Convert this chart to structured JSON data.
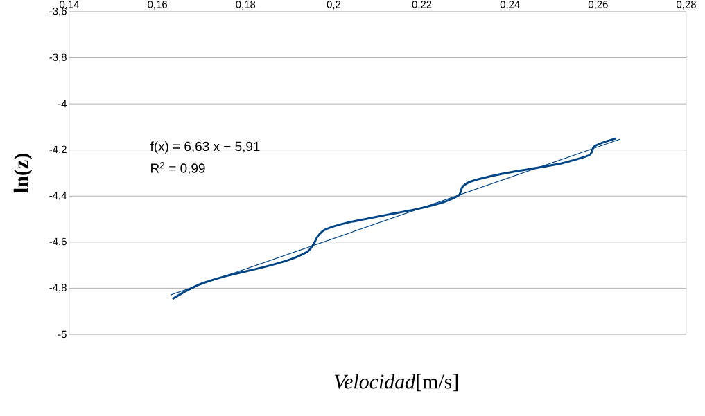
{
  "chart_data": {
    "type": "line",
    "xlabel": "*Velocidad*[m/s]",
    "ylabel": "**ln(z)**",
    "series": [
      {
        "color": "#004586",
        "x": [
          0.1634,
          0.166,
          0.17,
          0.176,
          0.184,
          0.19,
          0.194,
          0.1955,
          0.1963,
          0.198,
          0.203,
          0.2125,
          0.219,
          0.225,
          0.2284,
          0.2292,
          0.2312,
          0.2375,
          0.2446,
          0.2517,
          0.258,
          0.259,
          0.261,
          0.264
        ],
        "values": [
          -4.847,
          -4.817,
          -4.78,
          -4.745,
          -4.709,
          -4.676,
          -4.642,
          -4.606,
          -4.576,
          -4.546,
          -4.516,
          -4.48,
          -4.456,
          -4.426,
          -4.396,
          -4.36,
          -4.336,
          -4.306,
          -4.282,
          -4.258,
          -4.222,
          -4.186,
          -4.168,
          -4.15
        ]
      },
      {
        "color": "#004586",
        "x": [
          0.163,
          0.265
        ],
        "values": [
          -4.829,
          -4.153
        ]
      }
    ],
    "annotations": [
      "f(x) = 6,63 x − 5,91",
      "R$^{2}$ = 0,99"
    ],
    "xlim": [
      0.14,
      0.28
    ],
    "ylim": [
      -5,
      -3.6
    ],
    "xticks": [
      {
        "value": 0.14,
        "label": "0,14"
      },
      {
        "value": 0.16,
        "label": "0,16"
      },
      {
        "value": 0.18,
        "label": "0,18"
      },
      {
        "value": 0.2,
        "label": "0,2"
      },
      {
        "value": 0.22,
        "label": "0,22"
      },
      {
        "value": 0.24,
        "label": "0,24"
      },
      {
        "value": 0.26,
        "label": "0,26"
      },
      {
        "value": 0.28,
        "label": "0,28"
      }
    ],
    "yticks": [
      {
        "value": -5,
        "label": "-5"
      },
      {
        "value": -4.8,
        "label": "-4,8"
      },
      {
        "value": -4.6,
        "label": "-4,6"
      },
      {
        "value": -4.4,
        "label": "-4,4"
      },
      {
        "value": -4.2,
        "label": "-4,2"
      },
      {
        "value": -4,
        "label": "-4"
      },
      {
        "value": -3.8,
        "label": "-3,8"
      },
      {
        "value": -3.6,
        "label": "-3,6"
      }
    ],
    "grid": "y",
    "marker": "none",
    "line_style": "solid"
  }
}
